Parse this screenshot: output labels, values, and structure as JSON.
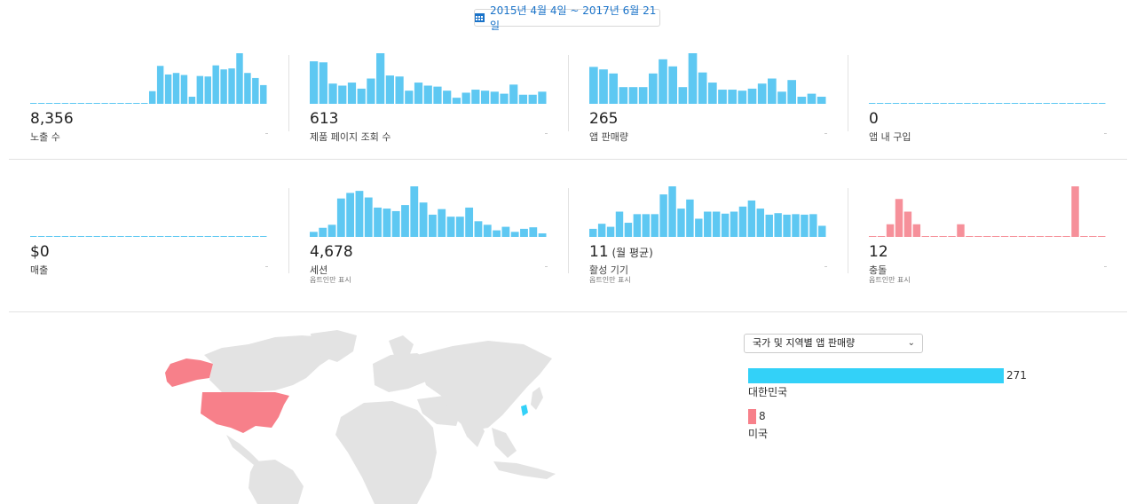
{
  "date_range": "2015년 4월 4일 ~ 2017년 6월 21일",
  "colors": {
    "blue": "#5ec8f2",
    "red": "#f6909a",
    "country_blue": "#33d1f8",
    "country_red": "#f7808a",
    "land": "#e3e3e3"
  },
  "metrics": [
    {
      "value": "8,356",
      "value_sub": "",
      "label": "노출 수",
      "note": "",
      "color": "blue",
      "bars": [
        0,
        0,
        0,
        0,
        0,
        0,
        0,
        0,
        0,
        0,
        0,
        0,
        0,
        0,
        0,
        25,
        75,
        58,
        61,
        57,
        14,
        55,
        54,
        76,
        68,
        70,
        100,
        61,
        51,
        37
      ]
    },
    {
      "value": "613",
      "value_sub": "",
      "label": "제품 페이지 조회 수",
      "note": "",
      "color": "blue",
      "bars": [
        84,
        82,
        40,
        36,
        42,
        30,
        50,
        100,
        56,
        54,
        26,
        42,
        36,
        34,
        26,
        12,
        22,
        28,
        26,
        24,
        20,
        38,
        18,
        18,
        24
      ]
    },
    {
      "value": "265",
      "value_sub": "",
      "label": "앱 판매량",
      "note": "",
      "color": "blue",
      "bars": [
        73,
        68,
        60,
        33,
        33,
        33,
        60,
        88,
        74,
        33,
        100,
        62,
        42,
        28,
        28,
        26,
        30,
        40,
        50,
        24,
        47,
        14,
        20,
        14
      ]
    },
    {
      "value": "0",
      "value_sub": "",
      "label": "앱 내 구입",
      "note": "",
      "color": "blue",
      "bars": [
        0,
        0,
        0,
        0,
        0,
        0,
        0,
        0,
        0,
        0,
        0,
        0,
        0,
        0,
        0,
        0,
        0,
        0,
        0,
        0,
        0,
        0,
        0,
        0,
        0,
        0,
        0,
        0,
        0,
        0
      ]
    },
    {
      "value": "$0",
      "value_sub": "",
      "label": "매출",
      "note": "",
      "color": "blue",
      "bars": [
        0,
        0,
        0,
        0,
        0,
        0,
        0,
        0,
        0,
        0,
        0,
        0,
        0,
        0,
        0,
        0,
        0,
        0,
        0,
        0,
        0,
        0,
        0,
        0,
        0,
        0,
        0,
        0,
        0,
        0
      ]
    },
    {
      "value": "4,678",
      "value_sub": "",
      "label": "세션",
      "note": "옵트인만 표시",
      "color": "blue",
      "bars": [
        10,
        18,
        24,
        76,
        87,
        91,
        78,
        58,
        56,
        51,
        63,
        100,
        68,
        44,
        55,
        40,
        40,
        58,
        31,
        24,
        13,
        20,
        10,
        16,
        19,
        7
      ]
    },
    {
      "value": "11",
      "value_sub": " (월 평균)",
      "label": "활성 기기",
      "note": "옵트인만 표시",
      "color": "blue",
      "bars": [
        16,
        26,
        20,
        50,
        28,
        45,
        45,
        45,
        84,
        100,
        56,
        74,
        36,
        50,
        50,
        46,
        50,
        60,
        72,
        56,
        44,
        47,
        44,
        45,
        44,
        45,
        22
      ]
    },
    {
      "value": "12",
      "value_sub": "",
      "label": "충돌",
      "note": "옵트인만 표시",
      "color": "red",
      "bars": [
        0,
        0,
        25,
        75,
        50,
        25,
        0,
        0,
        0,
        0,
        25,
        0,
        0,
        0,
        0,
        0,
        0,
        0,
        0,
        0,
        0,
        0,
        0,
        100,
        0,
        0,
        0
      ]
    }
  ],
  "country_chart": {
    "selector_label": "국가 및 지역별 앱 판매량",
    "items": [
      {
        "name": "대한민국",
        "value": 271,
        "color": "country_blue"
      },
      {
        "name": "미국",
        "value": 8,
        "color": "country_red"
      }
    ]
  }
}
